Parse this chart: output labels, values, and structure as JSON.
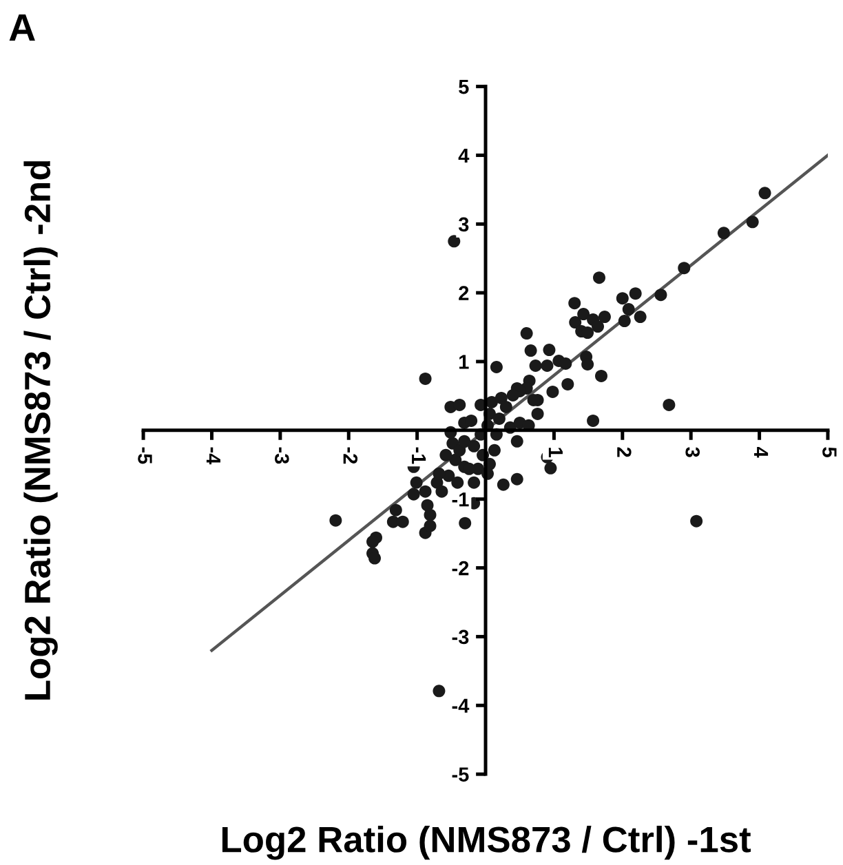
{
  "chart_data": {
    "type": "scatter",
    "xlabel": "Log2 Ratio (NMS873 / Ctrl) -1st",
    "ylabel": "Log2 Ratio (NMS873 / Ctrl) -2nd",
    "annotations": [
      "A"
    ],
    "xlim": [
      -5,
      5
    ],
    "ylim": [
      -5,
      5
    ],
    "xticks": [
      -5,
      -4,
      -3,
      -2,
      -1,
      1,
      2,
      3,
      4,
      5
    ],
    "yticks": [
      -5,
      -4,
      -3,
      -2,
      -1,
      1,
      2,
      3,
      4,
      5
    ],
    "grid": false,
    "marker": "circle",
    "series": [
      {
        "color": "#1a1a1a",
        "x": [
          4.08,
          3.9,
          3.48,
          2.9,
          2.56,
          2.19,
          2.0,
          2.09,
          2.03,
          2.26,
          1.66,
          1.3,
          1.43,
          1.31,
          1.4,
          1.57,
          1.74,
          1.64,
          1.49,
          -0.46,
          -0.88,
          0.16,
          0.6,
          0.66,
          0.93,
          0.73,
          0.9,
          1.07,
          1.17,
          1.47,
          1.49,
          1.69,
          1.2,
          0.98,
          2.68,
          1.57,
          0.64,
          0.6,
          0.76,
          0.46,
          -0.51,
          -0.38,
          -2.19,
          -1.65,
          -1.62,
          -1.6,
          -1.65,
          -1.31,
          -1.35,
          -1.21,
          -1.01,
          -1.05,
          -0.88,
          -0.85,
          -0.81,
          -0.88,
          -0.81,
          -1.05,
          -0.71,
          -0.64,
          -0.54,
          -0.44,
          -0.48,
          -0.51,
          -0.31,
          -0.21,
          -0.38,
          -0.31,
          -0.41,
          -0.17,
          -0.3,
          -0.17,
          -0.11,
          -0.04,
          -0.17,
          -0.07,
          0.03,
          0.06,
          0.09,
          0.23,
          0.3,
          0.2,
          0.16,
          0.13,
          0.06,
          0.03,
          0.26,
          0.46,
          0.46,
          0.36,
          0.5,
          0.63,
          0.76,
          0.7,
          0.5,
          0.4,
          0.9,
          0.95,
          -0.58,
          -0.68,
          -0.24,
          -0.31,
          -0.07,
          -0.68,
          3.08
        ],
        "values": [
          3.45,
          3.03,
          2.87,
          2.36,
          1.97,
          1.99,
          1.92,
          1.76,
          1.59,
          1.65,
          2.22,
          1.85,
          1.69,
          1.57,
          1.44,
          1.61,
          1.65,
          1.51,
          1.42,
          2.75,
          0.75,
          0.92,
          1.41,
          1.16,
          1.17,
          0.94,
          0.94,
          1.01,
          0.97,
          1.07,
          0.96,
          0.79,
          0.67,
          0.56,
          0.37,
          0.14,
          0.72,
          0.61,
          0.44,
          0.61,
          0.34,
          0.37,
          -1.31,
          -1.79,
          -1.86,
          -1.56,
          -1.62,
          -1.16,
          -1.33,
          -1.33,
          -0.76,
          -0.93,
          -0.89,
          -1.09,
          -1.23,
          -1.49,
          -1.39,
          -0.53,
          -0.76,
          -0.89,
          -0.66,
          -0.43,
          -0.19,
          -0.03,
          0.11,
          0.14,
          -0.29,
          -0.53,
          -0.76,
          -1.06,
          -1.35,
          -0.76,
          -0.56,
          -0.36,
          -0.23,
          -0.06,
          0.07,
          0.24,
          0.41,
          0.47,
          0.34,
          0.17,
          -0.06,
          -0.29,
          -0.49,
          -0.63,
          -0.79,
          -0.71,
          -0.16,
          0.04,
          0.11,
          0.07,
          0.24,
          0.44,
          0.57,
          0.51,
          -0.39,
          -0.55,
          -0.36,
          -0.63,
          -0.56,
          -0.16,
          0.37,
          -3.79,
          -1.32
        ]
      },
      {
        "type": "line",
        "color": "#555555",
        "marker": "none",
        "x": [
          -4,
          5
        ],
        "values": [
          -3.2,
          4.0
        ]
      }
    ]
  }
}
